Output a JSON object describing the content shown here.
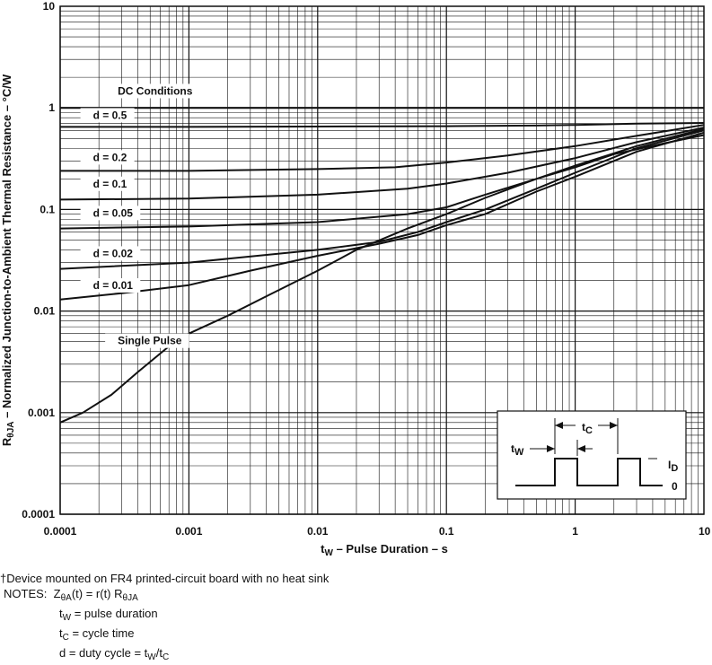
{
  "chart_data": {
    "type": "line",
    "xscale": "log",
    "yscale": "log",
    "xlim": [
      0.0001,
      10
    ],
    "ylim": [
      0.0001,
      10
    ],
    "grid": true,
    "xlabel": {
      "pre": "t",
      "sub": "W",
      "post": " – Pulse Duration – s"
    },
    "ylabel": {
      "pre": "R",
      "sub": "θJA",
      "post": " – Normalized Junction-to-Ambient Thermal Resistance – °C/W"
    },
    "x_ticks": [
      {
        "value": 0.0001,
        "label": "0.0001"
      },
      {
        "value": 0.001,
        "label": "0.001"
      },
      {
        "value": 0.01,
        "label": "0.01"
      },
      {
        "value": 0.1,
        "label": "0.1"
      },
      {
        "value": 1,
        "label": "1"
      },
      {
        "value": 10,
        "label": "10"
      }
    ],
    "y_ticks": [
      {
        "value": 0.0001,
        "label": "0.0001"
      },
      {
        "value": 0.001,
        "label": "0.001"
      },
      {
        "value": 0.01,
        "label": "0.01"
      },
      {
        "value": 0.1,
        "label": "0.1"
      },
      {
        "value": 1,
        "label": "1"
      },
      {
        "value": 10,
        "label": "10"
      }
    ],
    "series": [
      {
        "name": "DC Conditions",
        "x": [
          0.0001,
          10
        ],
        "y": [
          1,
          1
        ]
      },
      {
        "name": "d = 0.5",
        "x": [
          0.0001,
          0.001,
          0.01,
          0.1,
          0.5,
          1,
          3,
          10
        ],
        "y": [
          0.65,
          0.65,
          0.655,
          0.66,
          0.67,
          0.68,
          0.7,
          0.71
        ]
      },
      {
        "name": "d = 0.2",
        "x": [
          0.0001,
          0.001,
          0.01,
          0.04,
          0.1,
          0.3,
          1,
          3,
          10
        ],
        "y": [
          0.24,
          0.24,
          0.25,
          0.26,
          0.29,
          0.34,
          0.42,
          0.53,
          0.68
        ]
      },
      {
        "name": "d = 0.1",
        "x": [
          0.0001,
          0.001,
          0.01,
          0.05,
          0.1,
          0.3,
          1,
          3,
          10
        ],
        "y": [
          0.125,
          0.128,
          0.14,
          0.16,
          0.18,
          0.23,
          0.32,
          0.46,
          0.64
        ]
      },
      {
        "name": "d = 0.05",
        "x": [
          0.0001,
          0.001,
          0.01,
          0.05,
          0.1,
          0.2,
          0.5,
          1,
          3,
          10
        ],
        "y": [
          0.065,
          0.068,
          0.075,
          0.09,
          0.105,
          0.14,
          0.2,
          0.27,
          0.42,
          0.62
        ]
      },
      {
        "name": "d = 0.02",
        "x": [
          0.0001,
          0.001,
          0.01,
          0.03,
          0.06,
          0.1,
          0.2,
          0.5,
          1,
          3,
          10
        ],
        "y": [
          0.026,
          0.03,
          0.04,
          0.048,
          0.06,
          0.075,
          0.1,
          0.16,
          0.23,
          0.4,
          0.6
        ]
      },
      {
        "name": "d = 0.01",
        "x": [
          0.0001,
          0.0003,
          0.001,
          0.003,
          0.01,
          0.03,
          0.06,
          0.1,
          0.2,
          0.5,
          1,
          3,
          10
        ],
        "y": [
          0.013,
          0.015,
          0.018,
          0.025,
          0.035,
          0.046,
          0.056,
          0.07,
          0.09,
          0.15,
          0.21,
          0.37,
          0.57
        ]
      },
      {
        "name": "Single Pulse",
        "x": [
          0.0001,
          0.00015,
          0.00025,
          0.0004,
          0.0007,
          0.001,
          0.002,
          0.004,
          0.01,
          0.02,
          0.05,
          0.1,
          0.2,
          0.5,
          1,
          2,
          5,
          10
        ],
        "y": [
          0.0008,
          0.001,
          0.0015,
          0.0025,
          0.0045,
          0.006,
          0.009,
          0.014,
          0.025,
          0.04,
          0.065,
          0.09,
          0.13,
          0.2,
          0.26,
          0.35,
          0.45,
          0.54
        ]
      }
    ],
    "label_positions": [
      {
        "series": "DC Conditions",
        "x": 0.00028,
        "y": 1.35
      },
      {
        "series": "d = 0.5",
        "x": 0.00018,
        "y": 0.78
      },
      {
        "series": "d = 0.2",
        "x": 0.00018,
        "y": 0.3
      },
      {
        "series": "d = 0.1",
        "x": 0.00018,
        "y": 0.165
      },
      {
        "series": "d = 0.05",
        "x": 0.00018,
        "y": 0.085
      },
      {
        "series": "d = 0.02",
        "x": 0.00018,
        "y": 0.034
      },
      {
        "series": "d = 0.01",
        "x": 0.00018,
        "y": 0.0165
      },
      {
        "series": "Single Pulse",
        "x": 0.00028,
        "y": 0.0047
      }
    ],
    "inset": {
      "t_c": {
        "pre": "t",
        "sub": "C"
      },
      "t_w": {
        "pre": "t",
        "sub": "W"
      },
      "i_d": {
        "pre": "I",
        "sub": "D"
      },
      "zero": "0"
    }
  },
  "footnote": {
    "dagger": "†",
    "text": "Device mounted on FR4 printed-circuit board with no heat sink"
  },
  "notes": {
    "label": "NOTES:",
    "line1": {
      "z": "Z",
      "z_sub": "θA",
      "mid": "(t) = r(t) R",
      "r_sub": "θJA"
    },
    "line2": {
      "pre": "t",
      "sub": "W",
      "post": " = pulse duration"
    },
    "line3": {
      "pre": "t",
      "sub": "C",
      "post": " = cycle time"
    },
    "line4": {
      "pre": "d = duty cycle = t",
      "sub1": "W",
      "mid": "/t",
      "sub2": "C"
    }
  }
}
